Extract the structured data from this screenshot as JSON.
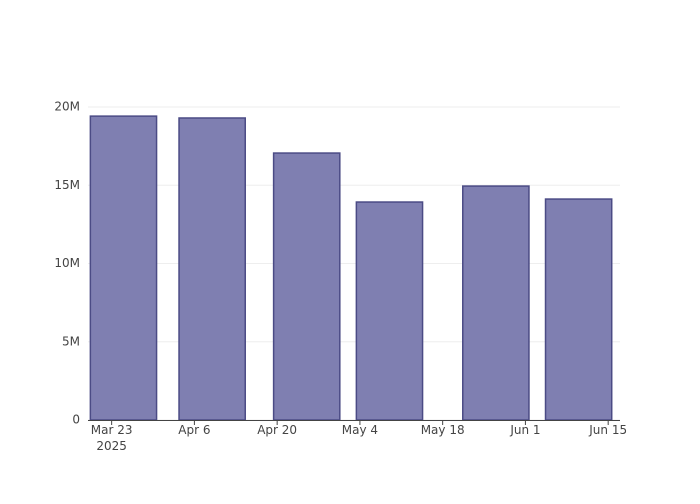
{
  "chart_data": {
    "type": "bar",
    "x": [
      "2025-03-25",
      "2025-04-09",
      "2025-04-25",
      "2025-05-09",
      "2025-05-27",
      "2025-06-10"
    ],
    "values": [
      19420000,
      19300000,
      17060000,
      13930000,
      14950000,
      14120000
    ],
    "color": "#7f7fb1",
    "line_color": "#4b4b85",
    "xlim": [
      "2025-03-19",
      "2025-06-17"
    ],
    "xticks": [
      {
        "value": "2025-03-23",
        "label": "Mar 23\n2025"
      },
      {
        "value": "2025-04-06",
        "label": "Apr 6"
      },
      {
        "value": "2025-04-20",
        "label": "Apr 20"
      },
      {
        "value": "2025-05-04",
        "label": "May 4"
      },
      {
        "value": "2025-05-18",
        "label": "May 18"
      },
      {
        "value": "2025-06-01",
        "label": "Jun 1"
      },
      {
        "value": "2025-06-15",
        "label": "Jun 15"
      }
    ],
    "ylim": [
      0,
      20450000
    ],
    "yticks": [
      0,
      {
        "value": 5000000,
        "label": "5M"
      },
      {
        "value": 10000000,
        "label": "10M"
      },
      {
        "value": 15000000,
        "label": "15M"
      },
      {
        "value": 20000000,
        "label": "20M"
      }
    ],
    "grid": true
  }
}
